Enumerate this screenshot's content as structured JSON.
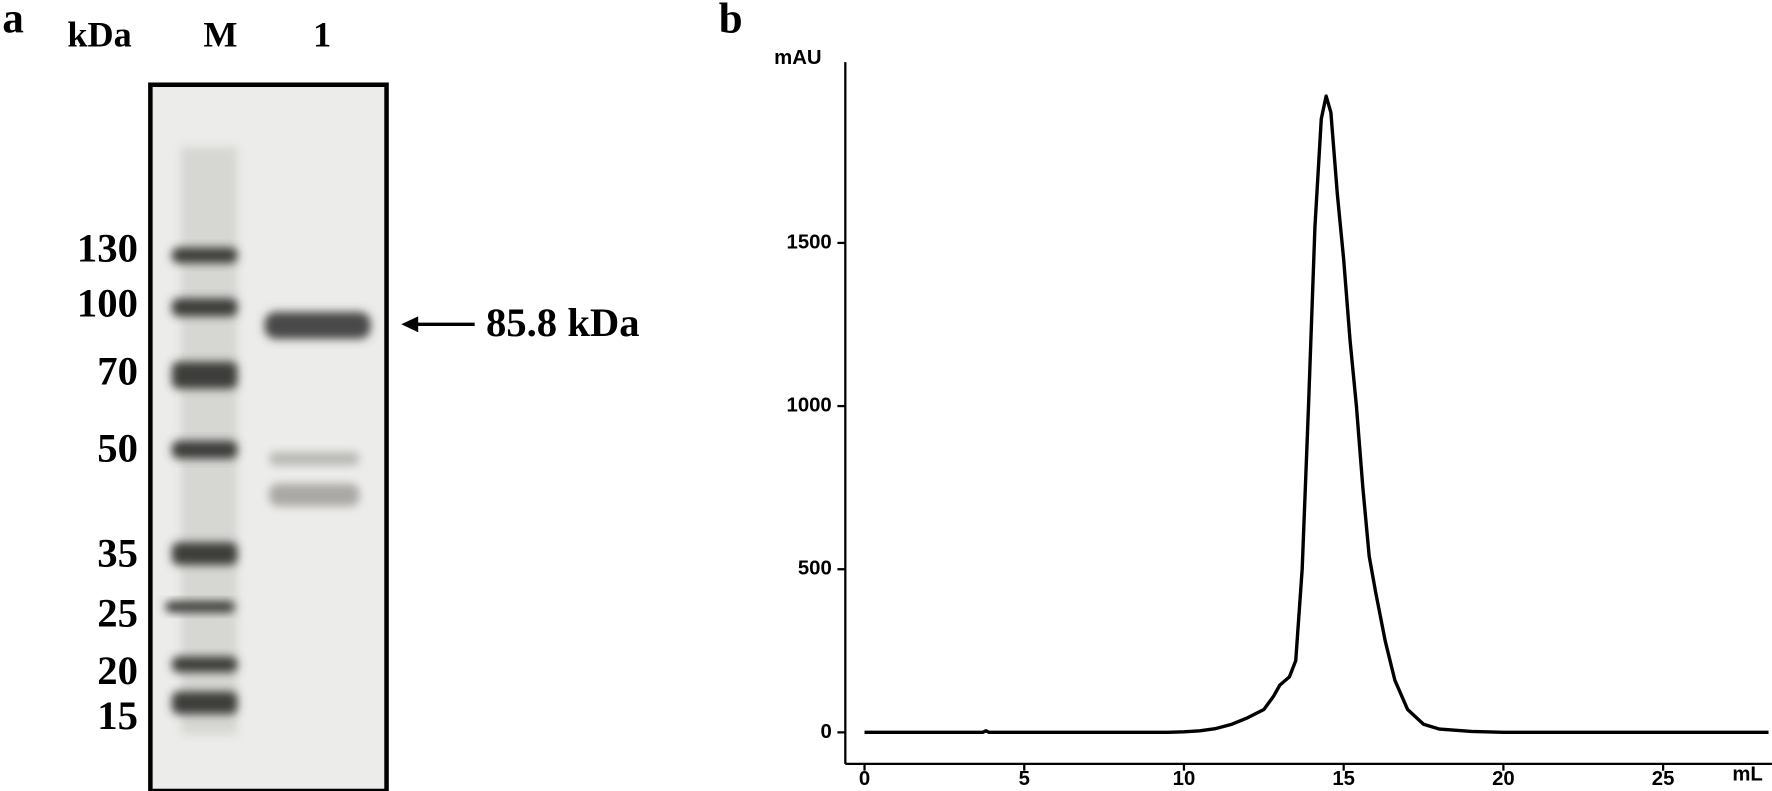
{
  "panel_a": {
    "label": "a",
    "headers": [
      "kDa",
      "M",
      "1"
    ],
    "markers": [
      "130",
      "100",
      "70",
      "50",
      "35",
      "25",
      "20",
      "15"
    ],
    "annotation": "85.8 kDa"
  },
  "chart_data": {
    "type": "line",
    "panel_label": "b",
    "y_label": "mAU",
    "x_label": "mL",
    "color": "#000000",
    "x": [
      0,
      3.7,
      3.8,
      3.9,
      9.5,
      10,
      10.5,
      11,
      11.5,
      12,
      12.5,
      12.8,
      13.0,
      13.3,
      13.5,
      13.7,
      13.9,
      14.1,
      14.3,
      14.45,
      14.6,
      14.8,
      15.0,
      15.2,
      15.4,
      15.6,
      15.8,
      16.0,
      16.3,
      16.6,
      17.0,
      17.5,
      18,
      19,
      20,
      28.3
    ],
    "values": [
      0,
      0,
      5,
      0,
      0,
      2,
      5,
      12,
      25,
      45,
      70,
      110,
      145,
      170,
      220,
      500,
      1000,
      1550,
      1880,
      1950,
      1900,
      1650,
      1450,
      1200,
      1000,
      750,
      540,
      430,
      280,
      160,
      70,
      25,
      10,
      3,
      0,
      0
    ],
    "xlim": [
      0,
      28.3
    ],
    "ylim": [
      -145,
      2054
    ],
    "xticks": [
      0,
      5,
      10,
      15,
      20,
      25
    ],
    "yticks": [
      0,
      500,
      1000,
      1500
    ]
  }
}
